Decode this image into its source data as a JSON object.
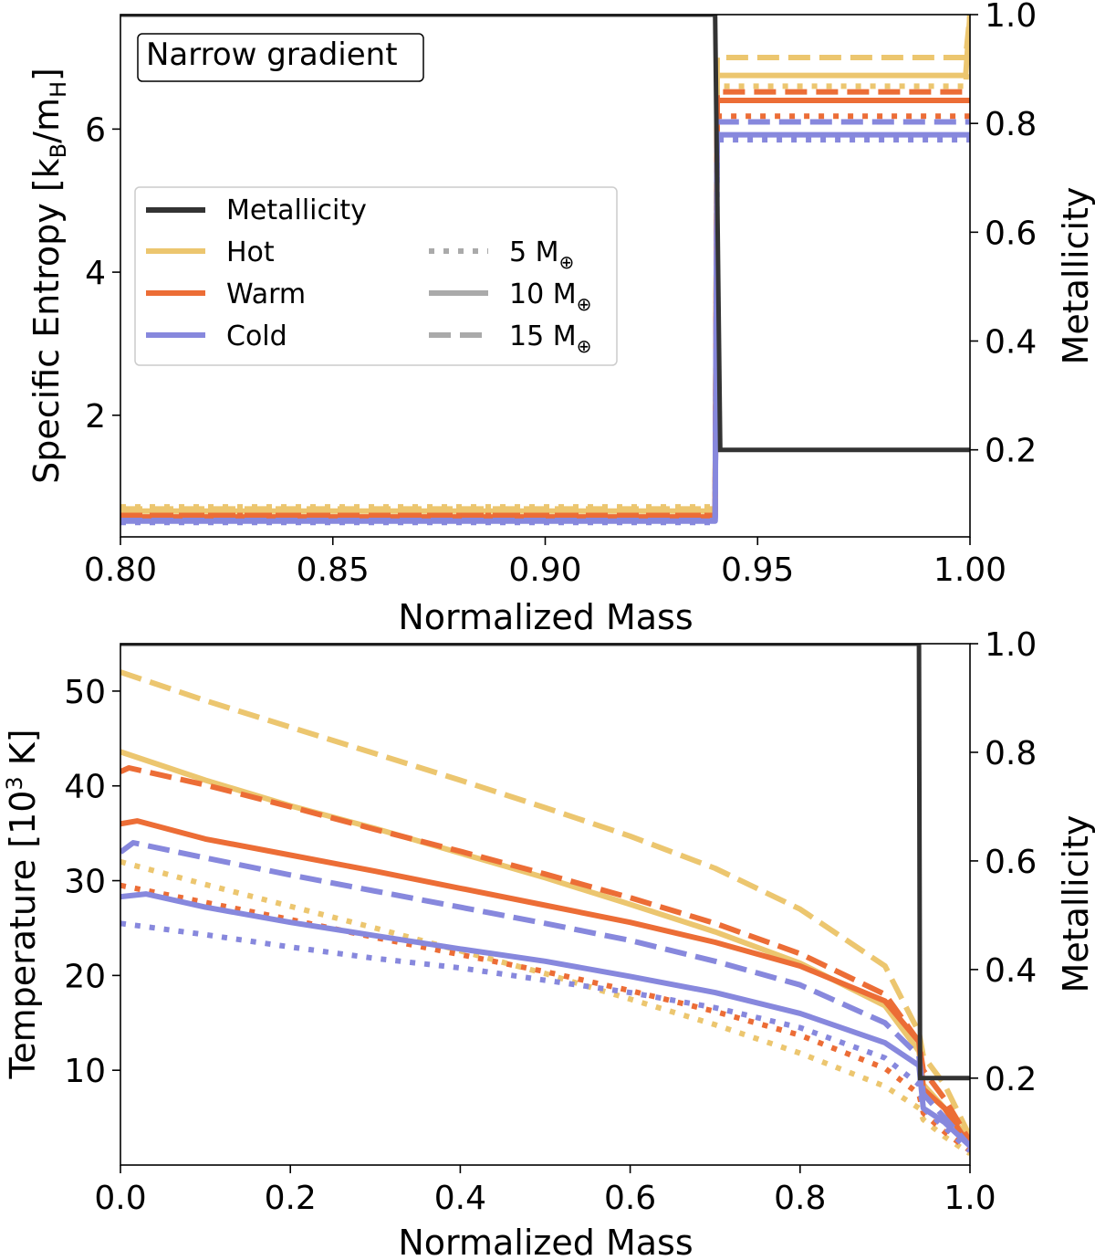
{
  "chart_data": [
    {
      "type": "line",
      "panel": "top",
      "annotation": "Narrow gradient",
      "xlabel": "Normalized Mass",
      "ylabel": "Specific Entropy [kB/mH]",
      "ylabel_parts": {
        "main": "Specific Entropy [k",
        "sub1": "B",
        "mid": "/m",
        "sub2": "H",
        "end": "]"
      },
      "y2label": "Metallicity",
      "xlim": [
        0.8,
        1.0
      ],
      "ylim": [
        0.3,
        7.6
      ],
      "y2lim": [
        0.04,
        1.0
      ],
      "xticks": [
        "0.80",
        "0.85",
        "0.90",
        "0.95",
        "1.00"
      ],
      "yticks": [
        "2",
        "4",
        "6"
      ],
      "y2ticks": [
        "0.2",
        "0.4",
        "0.6",
        "0.8",
        "1.0"
      ],
      "metallicity": {
        "x": [
          0.8,
          0.94,
          0.9412,
          1.0
        ],
        "z": [
          1.0,
          1.0,
          0.2,
          0.2
        ]
      },
      "series": [
        {
          "name": "Hot 5 M⊕",
          "group": "Hot",
          "mass": "5",
          "style": "dotted",
          "x": [
            0.8,
            0.94,
            0.9405,
            0.999,
            1.0
          ],
          "y": [
            0.72,
            0.72,
            6.6,
            6.6,
            7.6
          ]
        },
        {
          "name": "Hot 10 M⊕",
          "group": "Hot",
          "mass": "10",
          "style": "solid",
          "x": [
            0.8,
            0.94,
            0.9405,
            0.999,
            1.0
          ],
          "y": [
            0.66,
            0.66,
            6.75,
            6.75,
            7.6
          ]
        },
        {
          "name": "Hot 15 M⊕",
          "group": "Hot",
          "mass": "15",
          "style": "dashed",
          "x": [
            0.8,
            0.94,
            0.9405,
            0.999,
            1.0
          ],
          "y": [
            0.69,
            0.69,
            7.0,
            7.0,
            7.6
          ]
        },
        {
          "name": "Warm 5 M⊕",
          "group": "Warm",
          "mass": "5",
          "style": "dotted",
          "x": [
            0.8,
            0.94,
            0.9405,
            1.0
          ],
          "y": [
            0.6,
            0.6,
            6.18,
            6.18
          ]
        },
        {
          "name": "Warm 10 M⊕",
          "group": "Warm",
          "mass": "10",
          "style": "solid",
          "x": [
            0.8,
            0.94,
            0.9405,
            1.0
          ],
          "y": [
            0.58,
            0.58,
            6.4,
            6.4
          ]
        },
        {
          "name": "Warm 15 M⊕",
          "group": "Warm",
          "mass": "15",
          "style": "dashed",
          "x": [
            0.8,
            0.94,
            0.9405,
            1.0
          ],
          "y": [
            0.6,
            0.6,
            6.52,
            6.52
          ]
        },
        {
          "name": "Cold 5 M⊕",
          "group": "Cold",
          "mass": "5",
          "style": "dotted",
          "x": [
            0.8,
            0.94,
            0.9405,
            1.0
          ],
          "y": [
            0.5,
            0.5,
            5.85,
            5.85
          ]
        },
        {
          "name": "Cold 10 M⊕",
          "group": "Cold",
          "mass": "10",
          "style": "solid",
          "x": [
            0.8,
            0.94,
            0.9405,
            1.0
          ],
          "y": [
            0.52,
            0.52,
            5.92,
            5.92
          ]
        },
        {
          "name": "Cold 15 M⊕",
          "group": "Cold",
          "mass": "15",
          "style": "dashed",
          "x": [
            0.8,
            0.94,
            0.9405,
            1.0
          ],
          "y": [
            0.53,
            0.53,
            6.1,
            6.1
          ]
        }
      ],
      "legend": {
        "placement": "center-left",
        "entries": [
          "Metallicity",
          "Hot",
          "Warm",
          "Cold"
        ],
        "mass_entries": [
          {
            "value": "5",
            "unit": "M",
            "symbol": "⊕",
            "style": "dotted"
          },
          {
            "value": "10",
            "unit": "M",
            "symbol": "⊕",
            "style": "solid"
          },
          {
            "value": "15",
            "unit": "M",
            "symbol": "⊕",
            "style": "dashed"
          }
        ]
      }
    },
    {
      "type": "line",
      "panel": "bottom",
      "xlabel": "Normalized Mass",
      "ylabel": "Temperature [10³ K]",
      "ylabel_parts": {
        "main": "Temperature [10",
        "sup": "3",
        "end": " K]"
      },
      "y2label": "Metallicity",
      "xlim": [
        0.0,
        1.0
      ],
      "ylim": [
        0.0,
        55.0
      ],
      "y2lim": [
        0.04,
        1.0
      ],
      "xticks": [
        "0.0",
        "0.2",
        "0.4",
        "0.6",
        "0.8",
        "1.0"
      ],
      "yticks": [
        "10",
        "20",
        "30",
        "40",
        "50"
      ],
      "y2ticks": [
        "0.2",
        "0.4",
        "0.6",
        "0.8",
        "1.0"
      ],
      "metallicity": {
        "x": [
          0.0,
          0.94,
          0.9412,
          1.0
        ],
        "z": [
          1.0,
          1.0,
          0.2,
          0.2
        ]
      },
      "series": [
        {
          "name": "Hot 5 M⊕",
          "group": "Hot",
          "mass": "5",
          "style": "dotted",
          "x": [
            0.0,
            0.1,
            0.2,
            0.3,
            0.4,
            0.5,
            0.6,
            0.7,
            0.8,
            0.9,
            0.94,
            0.945,
            0.97,
            1.0
          ],
          "y": [
            32.0,
            29.6,
            27.3,
            25.0,
            22.6,
            20.2,
            17.5,
            14.8,
            11.8,
            8.3,
            6.0,
            4.8,
            3.0,
            1.2
          ]
        },
        {
          "name": "Hot 10 M⊕",
          "group": "Hot",
          "mass": "10",
          "style": "solid",
          "x": [
            0.0,
            0.1,
            0.2,
            0.3,
            0.4,
            0.5,
            0.6,
            0.7,
            0.8,
            0.9,
            0.94,
            0.945,
            0.97,
            1.0
          ],
          "y": [
            43.6,
            40.6,
            37.9,
            35.5,
            32.9,
            30.3,
            27.5,
            24.6,
            21.3,
            16.8,
            12.0,
            8.5,
            6.0,
            2.5
          ]
        },
        {
          "name": "Hot 15 M⊕",
          "group": "Hot",
          "mass": "15",
          "style": "dashed",
          "x": [
            0.0,
            0.1,
            0.2,
            0.3,
            0.4,
            0.5,
            0.6,
            0.7,
            0.8,
            0.9,
            0.94,
            0.945,
            0.97,
            1.0
          ],
          "y": [
            52.0,
            49.0,
            46.2,
            43.4,
            40.6,
            37.7,
            34.7,
            31.3,
            27.0,
            21.0,
            14.0,
            11.5,
            8.5,
            3.0
          ]
        },
        {
          "name": "Warm 5 M⊕",
          "group": "Warm",
          "mass": "5",
          "style": "dotted",
          "x": [
            0.0,
            0.1,
            0.2,
            0.3,
            0.4,
            0.5,
            0.6,
            0.7,
            0.8,
            0.9,
            0.94,
            0.945,
            0.97,
            1.0
          ],
          "y": [
            29.5,
            27.7,
            25.9,
            24.0,
            22.2,
            20.4,
            18.4,
            16.2,
            13.7,
            10.2,
            7.5,
            5.5,
            3.5,
            1.5
          ]
        },
        {
          "name": "Warm 10 M⊕",
          "group": "Warm",
          "mass": "10",
          "style": "solid",
          "x": [
            0.0,
            0.02,
            0.1,
            0.2,
            0.3,
            0.4,
            0.5,
            0.6,
            0.7,
            0.8,
            0.9,
            0.94,
            0.945,
            0.97,
            1.0
          ],
          "y": [
            36.0,
            36.3,
            34.4,
            32.7,
            31.0,
            29.2,
            27.4,
            25.6,
            23.5,
            21.0,
            17.3,
            13.0,
            8.0,
            6.0,
            2.0
          ]
        },
        {
          "name": "Warm 15 M⊕",
          "group": "Warm",
          "mass": "15",
          "style": "dashed",
          "x": [
            0.0,
            0.01,
            0.1,
            0.2,
            0.3,
            0.4,
            0.5,
            0.6,
            0.7,
            0.8,
            0.9,
            0.94,
            0.945,
            0.97,
            1.0
          ],
          "y": [
            41.5,
            41.9,
            40.1,
            37.8,
            35.4,
            33.1,
            30.7,
            28.2,
            25.5,
            22.3,
            18.0,
            13.0,
            10.0,
            7.0,
            2.5
          ]
        },
        {
          "name": "Cold 5 M⊕",
          "group": "Cold",
          "mass": "5",
          "style": "dotted",
          "x": [
            0.0,
            0.1,
            0.2,
            0.3,
            0.4,
            0.5,
            0.6,
            0.7,
            0.8,
            0.9,
            0.94,
            0.945,
            0.97,
            1.0
          ],
          "y": [
            25.5,
            24.3,
            23.0,
            21.8,
            20.8,
            19.5,
            18.2,
            16.6,
            14.5,
            11.3,
            8.5,
            6.0,
            4.0,
            1.5
          ]
        },
        {
          "name": "Cold 10 M⊕",
          "group": "Cold",
          "mass": "10",
          "style": "solid",
          "x": [
            0.0,
            0.03,
            0.1,
            0.2,
            0.3,
            0.4,
            0.5,
            0.6,
            0.7,
            0.8,
            0.9,
            0.94,
            0.945,
            0.97,
            1.0
          ],
          "y": [
            28.3,
            28.6,
            27.2,
            25.6,
            24.2,
            22.8,
            21.5,
            19.9,
            18.2,
            16.0,
            12.9,
            10.5,
            6.0,
            4.5,
            2.0
          ]
        },
        {
          "name": "Cold 15 M⊕",
          "group": "Cold",
          "mass": "15",
          "style": "dashed",
          "x": [
            0.0,
            0.015,
            0.1,
            0.2,
            0.3,
            0.4,
            0.5,
            0.6,
            0.7,
            0.8,
            0.9,
            0.94,
            0.945,
            0.97,
            1.0
          ],
          "y": [
            33.0,
            34.0,
            32.4,
            30.6,
            28.9,
            27.2,
            25.5,
            23.7,
            21.5,
            19.0,
            15.0,
            11.5,
            7.5,
            5.0,
            2.0
          ]
        }
      ]
    }
  ],
  "colors": {
    "Metallicity": "#333333",
    "Hot": "#ecc66f",
    "Warm": "#ec6d36",
    "Cold": "#8788dd",
    "mass_legend": "#aaaaaa"
  }
}
